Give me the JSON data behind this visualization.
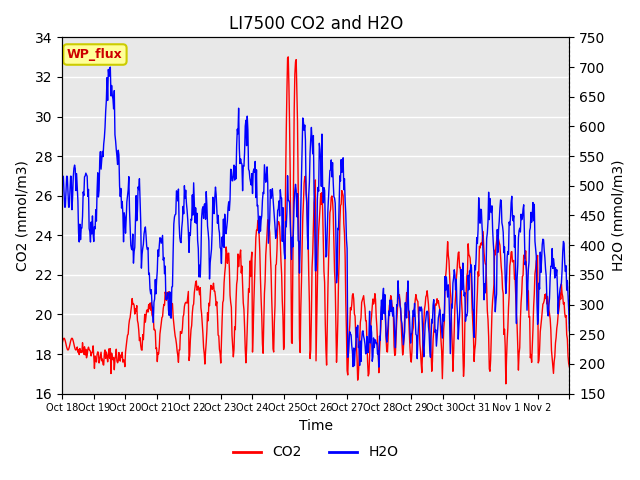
{
  "title": "LI7500 CO2 and H2O",
  "xlabel": "Time",
  "ylabel_left": "CO2 (mmol/m3)",
  "ylabel_right": "H2O (mmol/m3)",
  "ylim_left": [
    16,
    34
  ],
  "ylim_right": [
    150,
    750
  ],
  "yticks_left": [
    16,
    18,
    20,
    22,
    24,
    26,
    28,
    30,
    32,
    34
  ],
  "yticks_right": [
    150,
    200,
    250,
    300,
    350,
    400,
    450,
    500,
    550,
    600,
    650,
    700,
    750
  ],
  "x_tick_labels": [
    "Oct 18",
    "Oct 19",
    "Oct 20",
    "Oct 21",
    "Oct 22",
    "Oct 23",
    "Oct 24",
    "Oct 25",
    "Oct 26",
    "Oct 27",
    "Oct 28",
    "Oct 29",
    "Oct 30",
    "Oct 31",
    "Nov 1",
    "Nov 2",
    ""
  ],
  "co2_color": "#FF0000",
  "h2o_color": "#0000FF",
  "background_color": "#FFFFFF",
  "plot_bg_color": "#E8E8E8",
  "grid_color": "#FFFFFF",
  "annotation_text": "WP_flux",
  "annotation_color": "#CC0000",
  "annotation_bg": "#FFFF99",
  "annotation_border": "#CCCC00",
  "legend_co2": "CO2",
  "legend_h2o": "H2O",
  "line_width": 1.0
}
